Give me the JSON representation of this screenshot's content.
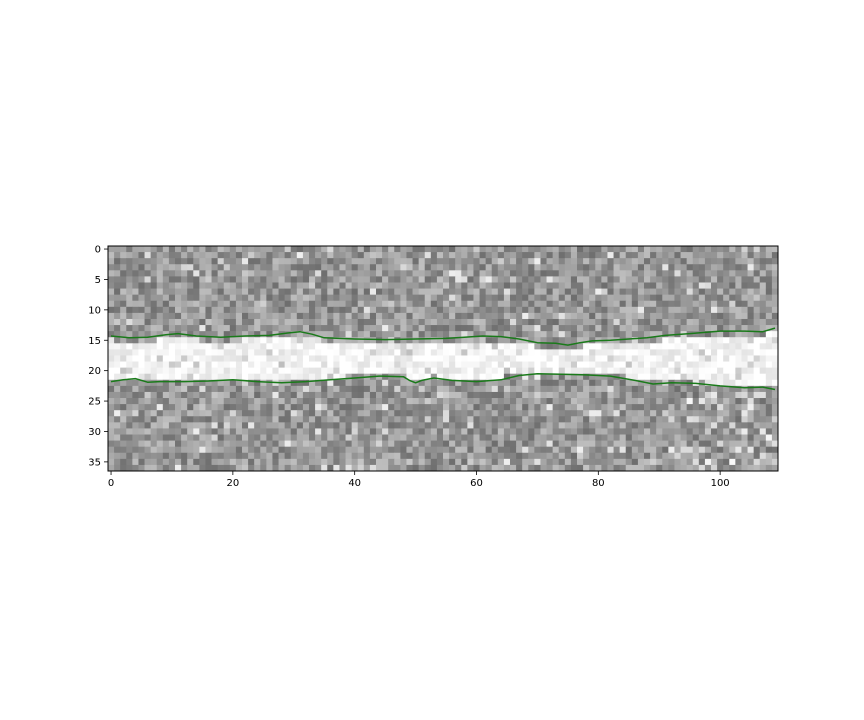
{
  "chart_data": {
    "type": "heatmap",
    "image": {
      "rows": 37,
      "cols": 110,
      "colormap": "gray",
      "description_of_content": "noisy grayscale image with a bright horizontal band between rows ~15 and ~22"
    },
    "x_axis": {
      "ticks": [
        0,
        20,
        40,
        60,
        80,
        100
      ],
      "tick_labels": [
        "0",
        "20",
        "40",
        "60",
        "80",
        "100"
      ],
      "range": [
        -0.5,
        109.5
      ]
    },
    "y_axis": {
      "ticks": [
        0,
        5,
        10,
        15,
        20,
        25,
        30,
        35
      ],
      "tick_labels": [
        "0",
        "5",
        "10",
        "15",
        "20",
        "25",
        "30",
        "35"
      ],
      "range": [
        36.5,
        -0.5
      ],
      "inverted": true
    },
    "series": [
      {
        "color": "#1a7a1a",
        "x": [
          0,
          3,
          6,
          9,
          11,
          14,
          18,
          22,
          26,
          29,
          31,
          33,
          35,
          40,
          45,
          50,
          55,
          58,
          61,
          64,
          67,
          70,
          73,
          75,
          77,
          79,
          82,
          85,
          88,
          91,
          95,
          100,
          104,
          107,
          109
        ],
        "y": [
          14.3,
          14.6,
          14.5,
          14.1,
          13.9,
          14.3,
          14.5,
          14.3,
          14.2,
          13.8,
          13.6,
          14.0,
          14.6,
          14.8,
          14.9,
          14.8,
          14.7,
          14.5,
          14.3,
          14.4,
          14.8,
          15.4,
          15.5,
          15.8,
          15.4,
          15.1,
          15.0,
          14.8,
          14.6,
          14.2,
          13.9,
          13.5,
          13.5,
          13.6,
          13.0
        ]
      },
      {
        "color": "#1a7a1a",
        "x": [
          0,
          2,
          4,
          6,
          8,
          12,
          16,
          20,
          24,
          28,
          32,
          36,
          40,
          44,
          48,
          49,
          50,
          51,
          53,
          56,
          60,
          64,
          67,
          70,
          74,
          78,
          82,
          86,
          89,
          92,
          96,
          100,
          104,
          107,
          109
        ],
        "y": [
          21.8,
          21.5,
          21.3,
          21.9,
          21.8,
          21.8,
          21.7,
          21.5,
          21.8,
          22.0,
          21.8,
          21.5,
          21.2,
          20.9,
          21.0,
          21.6,
          22.0,
          21.6,
          21.2,
          21.6,
          21.8,
          21.5,
          20.8,
          20.5,
          20.6,
          20.7,
          20.9,
          21.6,
          22.2,
          22.0,
          22.1,
          22.5,
          22.8,
          22.7,
          23.1
        ]
      }
    ]
  }
}
